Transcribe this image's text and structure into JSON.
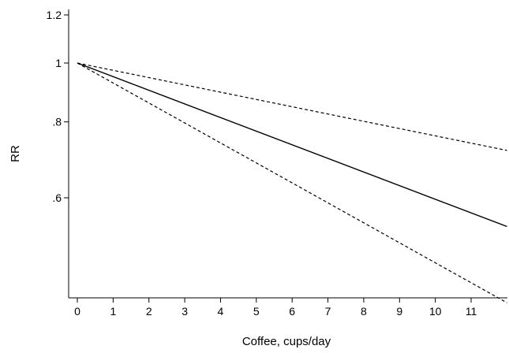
{
  "chart_data": {
    "type": "line",
    "title": "",
    "xlabel": "Coffee, cups/day",
    "ylabel": "RR",
    "xlim": [
      -0.4,
      12
    ],
    "ylim": [
      0.46,
      1.22
    ],
    "y_scale": "log",
    "x_ticks": [
      0,
      1,
      2,
      3,
      4,
      5,
      6,
      7,
      8,
      9,
      10,
      11
    ],
    "x_tick_labels": [
      "0",
      "1",
      "2",
      "3",
      "4",
      "5",
      "6",
      "7",
      "8",
      "9",
      "10",
      "11"
    ],
    "y_ticks": [
      0.6,
      0.8,
      1,
      1.2
    ],
    "y_tick_labels": [
      ".6",
      ".8",
      "1",
      "1.2"
    ],
    "grid": false,
    "series": [
      {
        "style": "solid",
        "color": "#000000",
        "x": [
          0,
          12
        ],
        "y": [
          1.0,
          0.538
        ]
      },
      {
        "style": "dashed",
        "color": "#000000",
        "x": [
          0,
          12
        ],
        "y": [
          1.0,
          0.718
        ]
      },
      {
        "style": "dashed",
        "color": "#000000",
        "x": [
          0,
          12
        ],
        "y": [
          1.0,
          0.403
        ]
      }
    ]
  }
}
